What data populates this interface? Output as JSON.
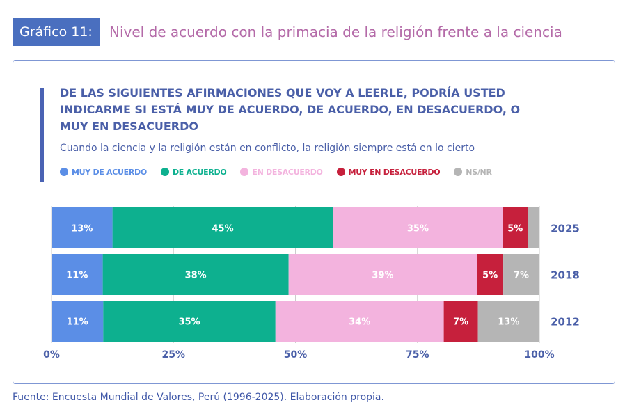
{
  "header": {
    "badge": "Gráfico 11:",
    "title": "Nivel de acuerdo con la primacia de la religión frente a la ciencia"
  },
  "question": "DE LAS SIGUIENTES AFIRMACIONES QUE VOY A LEERLE, PODRÍA USTED INDICARME SI ESTÁ MUY DE ACUERDO, DE ACUERDO, EN DESACUERDO, O MUY EN DESACUERDO",
  "footer": "Fuente: Encuesta Mundial de Valores, Perú (1996-2025). Elaboración propia.",
  "chart_data": {
    "type": "bar",
    "orientation": "horizontal",
    "stacked": true,
    "title": "Cuando la ciencia y la religión están en conflicto, la religión siempre está en lo cierto",
    "categories": [
      "2025",
      "2018",
      "2012"
    ],
    "series": [
      {
        "name": "MUY DE ACUERDO",
        "color": "#5b8ee6",
        "values": [
          12.5,
          10.5,
          10.6
        ],
        "labels": [
          "13%",
          "11%",
          "11%"
        ]
      },
      {
        "name": "DE ACUERDO",
        "color": "#0db08f",
        "values": [
          45.2,
          38.1,
          35.3
        ],
        "labels": [
          "45%",
          "38%",
          "35%"
        ]
      },
      {
        "name": "EN DESACUERDO",
        "color": "#f3b3de",
        "values": [
          34.8,
          38.6,
          34.5
        ],
        "labels": [
          "35%",
          "39%",
          "34%"
        ]
      },
      {
        "name": "MUY EN DESACUERDO",
        "color": "#c6203c",
        "values": [
          5.1,
          5.4,
          7.0
        ],
        "labels": [
          "5%",
          "5%",
          "7%"
        ]
      },
      {
        "name": "NS/NR",
        "color": "#b5b5b5",
        "values": [
          2.4,
          7.4,
          12.6
        ],
        "labels": [
          "",
          "7%",
          "13%"
        ]
      }
    ],
    "xlim": [
      0,
      100
    ],
    "xticks": [
      "0%",
      "25%",
      "50%",
      "75%",
      "100%"
    ],
    "grid": true,
    "legend": "top-left"
  }
}
